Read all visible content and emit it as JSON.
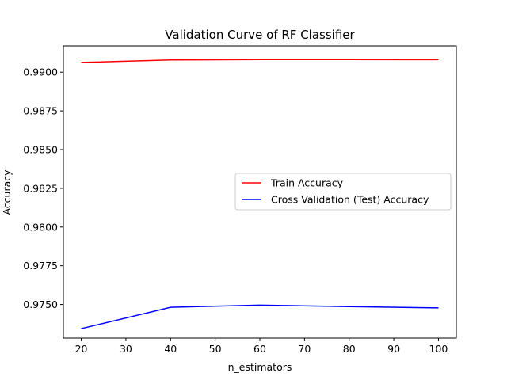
{
  "chart_data": {
    "type": "line",
    "title": "Validation Curve of RF Classifier",
    "xlabel": "n_estimators",
    "ylabel": "Accuracy",
    "x": [
      20,
      40,
      60,
      80,
      100
    ],
    "xticks": [
      20,
      30,
      40,
      50,
      60,
      70,
      80,
      90,
      100
    ],
    "xtick_labels": [
      "20",
      "30",
      "40",
      "50",
      "60",
      "70",
      "80",
      "90",
      "100"
    ],
    "yticks": [
      0.975,
      0.9775,
      0.98,
      0.9825,
      0.985,
      0.9875,
      0.99
    ],
    "ytick_labels": [
      "0.9750",
      "0.9775",
      "0.9800",
      "0.9825",
      "0.9850",
      "0.9875",
      "0.9900"
    ],
    "xlim": [
      16,
      104
    ],
    "ylim": [
      0.97283,
      0.9917
    ],
    "grid": false,
    "legend_position": "center-right",
    "series": [
      {
        "name": "Train Accuracy",
        "color": "#ff0000",
        "values": [
          0.99063,
          0.99079,
          0.99082,
          0.99082,
          0.99081
        ]
      },
      {
        "name": "Cross Validation (Test) Accuracy",
        "color": "#0000ff",
        "values": [
          0.97344,
          0.97482,
          0.97496,
          0.97486,
          0.97478
        ]
      }
    ]
  }
}
